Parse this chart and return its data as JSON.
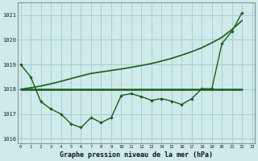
{
  "title": "Graphe pression niveau de la mer (hPa)",
  "background_color": "#ceeaea",
  "grid_color": "#aacece",
  "line_color": "#1a5c1a",
  "xlim": [
    -0.3,
    23.3
  ],
  "ylim": [
    1015.8,
    1021.5
  ],
  "yticks": [
    1016,
    1017,
    1018,
    1019,
    1020,
    1021
  ],
  "xticks": [
    0,
    1,
    2,
    3,
    4,
    5,
    6,
    7,
    8,
    9,
    10,
    11,
    12,
    13,
    14,
    15,
    16,
    17,
    18,
    19,
    20,
    21,
    22,
    23
  ],
  "xtick_labels": [
    "0",
    "1",
    "2",
    "3",
    "4",
    "5",
    "6",
    "7",
    "8",
    "9",
    "10",
    "11",
    "12",
    "13",
    "14",
    "15",
    "16",
    "17",
    "18",
    "19",
    "20",
    "21",
    "22",
    "23"
  ],
  "series_zigzag_x": [
    0,
    1,
    2,
    3,
    4,
    5,
    6,
    7,
    8,
    9,
    10,
    11,
    12,
    13,
    14,
    15,
    16,
    17,
    18,
    19,
    20,
    21,
    22
  ],
  "series_zigzag": [
    1019.0,
    1018.5,
    1017.5,
    1017.2,
    1017.0,
    1016.6,
    1016.45,
    1016.85,
    1016.65,
    1016.85,
    1017.75,
    1017.82,
    1017.7,
    1017.55,
    1017.62,
    1017.52,
    1017.38,
    1017.62,
    1018.02,
    1018.02,
    1019.85,
    1020.35,
    1021.1
  ],
  "series_flat_x": [
    0,
    1,
    2,
    3,
    4,
    5,
    6,
    7,
    8,
    9,
    10,
    11,
    12,
    13,
    14,
    15,
    16,
    17,
    18,
    19,
    20,
    21,
    22
  ],
  "series_flat": [
    1018.0,
    1018.0,
    1018.0,
    1018.0,
    1018.0,
    1018.0,
    1018.0,
    1018.0,
    1018.0,
    1018.0,
    1018.0,
    1018.0,
    1018.0,
    1018.0,
    1018.0,
    1018.0,
    1018.0,
    1018.0,
    1018.0,
    1018.0,
    1018.0,
    1018.0,
    1018.0
  ],
  "series_rising_x": [
    0,
    1,
    2,
    3,
    4,
    5,
    6,
    7,
    8,
    9,
    10,
    11,
    12,
    13,
    14,
    15,
    16,
    17,
    18,
    19,
    20,
    21,
    22
  ],
  "series_rising": [
    1018.0,
    1018.06,
    1018.13,
    1018.22,
    1018.32,
    1018.43,
    1018.54,
    1018.64,
    1018.7,
    1018.76,
    1018.82,
    1018.89,
    1018.96,
    1019.04,
    1019.14,
    1019.25,
    1019.38,
    1019.52,
    1019.68,
    1019.88,
    1020.1,
    1020.42,
    1020.78
  ]
}
